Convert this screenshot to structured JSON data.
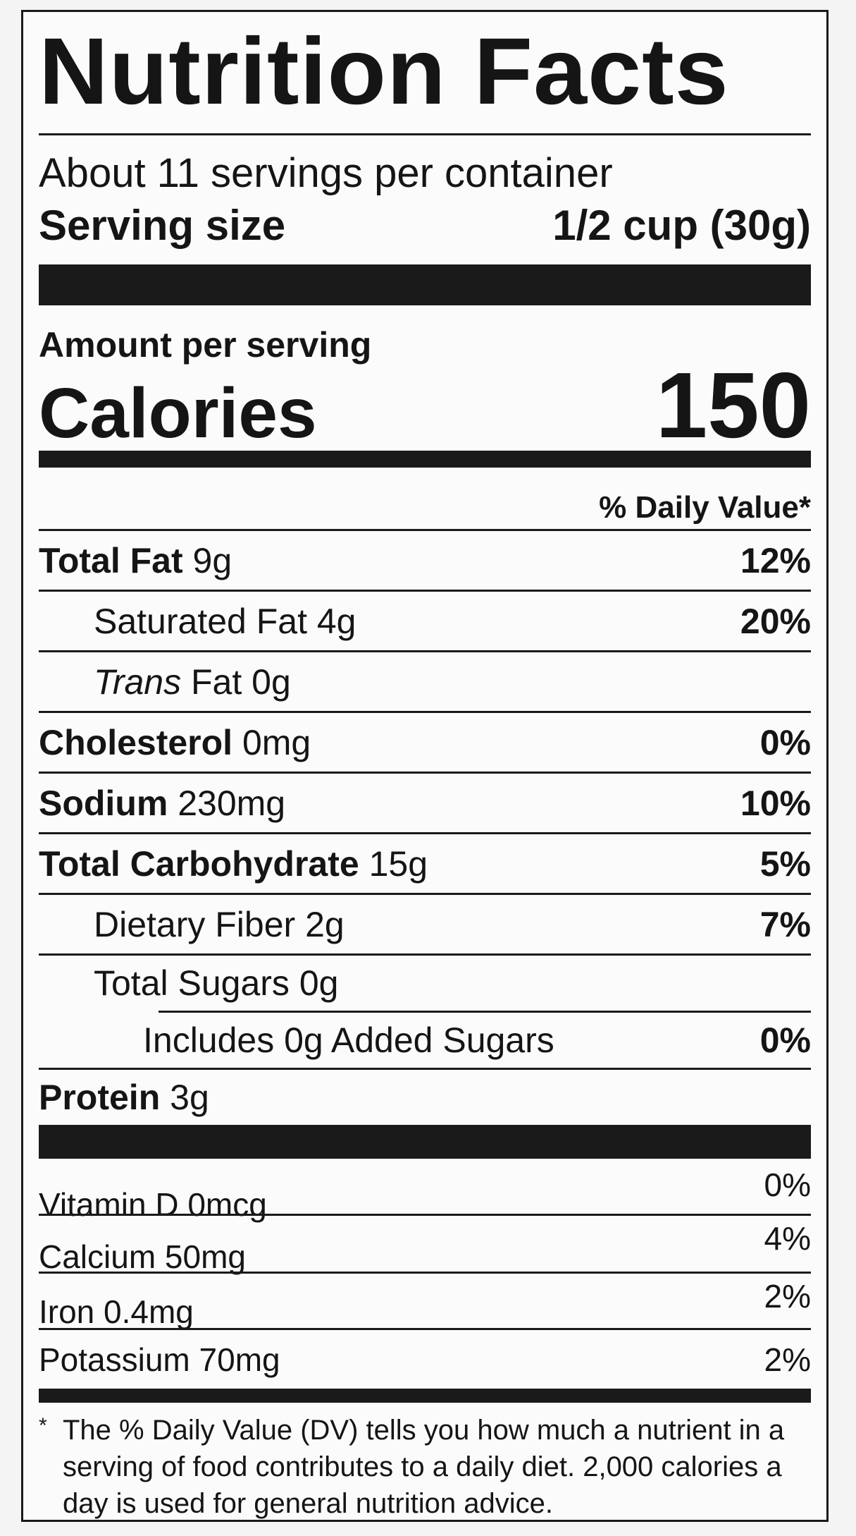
{
  "title": "Nutrition Facts",
  "servings_per_container": "About 11 servings per container",
  "serving_size": {
    "label": "Serving size",
    "value": "1/2 cup (30g)"
  },
  "amount_per_serving": "Amount per serving",
  "calories": {
    "label": "Calories",
    "value": "150"
  },
  "daily_value_header": "% Daily Value*",
  "nutrients": [
    {
      "name": "Total Fat",
      "amount": "9g",
      "dv": "12%"
    },
    {
      "name": "Saturated Fat",
      "amount": "4g",
      "dv": "20%"
    },
    {
      "name_italic": "Trans",
      "name": "Fat",
      "amount": "0g",
      "dv": ""
    },
    {
      "name": "Cholesterol",
      "amount": "0mg",
      "dv": "0%"
    },
    {
      "name": "Sodium",
      "amount": "230mg",
      "dv": "10%"
    },
    {
      "name": "Total Carbohydrate",
      "amount": "15g",
      "dv": "5%"
    },
    {
      "name": "Dietary Fiber",
      "amount": "2g",
      "dv": "7%"
    },
    {
      "name": "Total Sugars",
      "amount": "0g",
      "dv": ""
    },
    {
      "name": "Includes 0g Added Sugars",
      "amount": "",
      "dv": "0%"
    },
    {
      "name": "Protein",
      "amount": "3g",
      "dv": ""
    }
  ],
  "vitamins": [
    {
      "name": "Vitamin D 0mcg",
      "dv": "0%"
    },
    {
      "name": "Calcium 50mg",
      "dv": "4%"
    },
    {
      "name": "Iron 0.4mg",
      "dv": "2%"
    },
    {
      "name": "Potassium 70mg",
      "dv": "2%"
    }
  ],
  "footnote": {
    "mark": "*",
    "text": "The % Daily Value (DV) tells you how much a nutrient in a serving of food contributes to a daily diet. 2,000 calories a day is used for general nutrition advice."
  }
}
